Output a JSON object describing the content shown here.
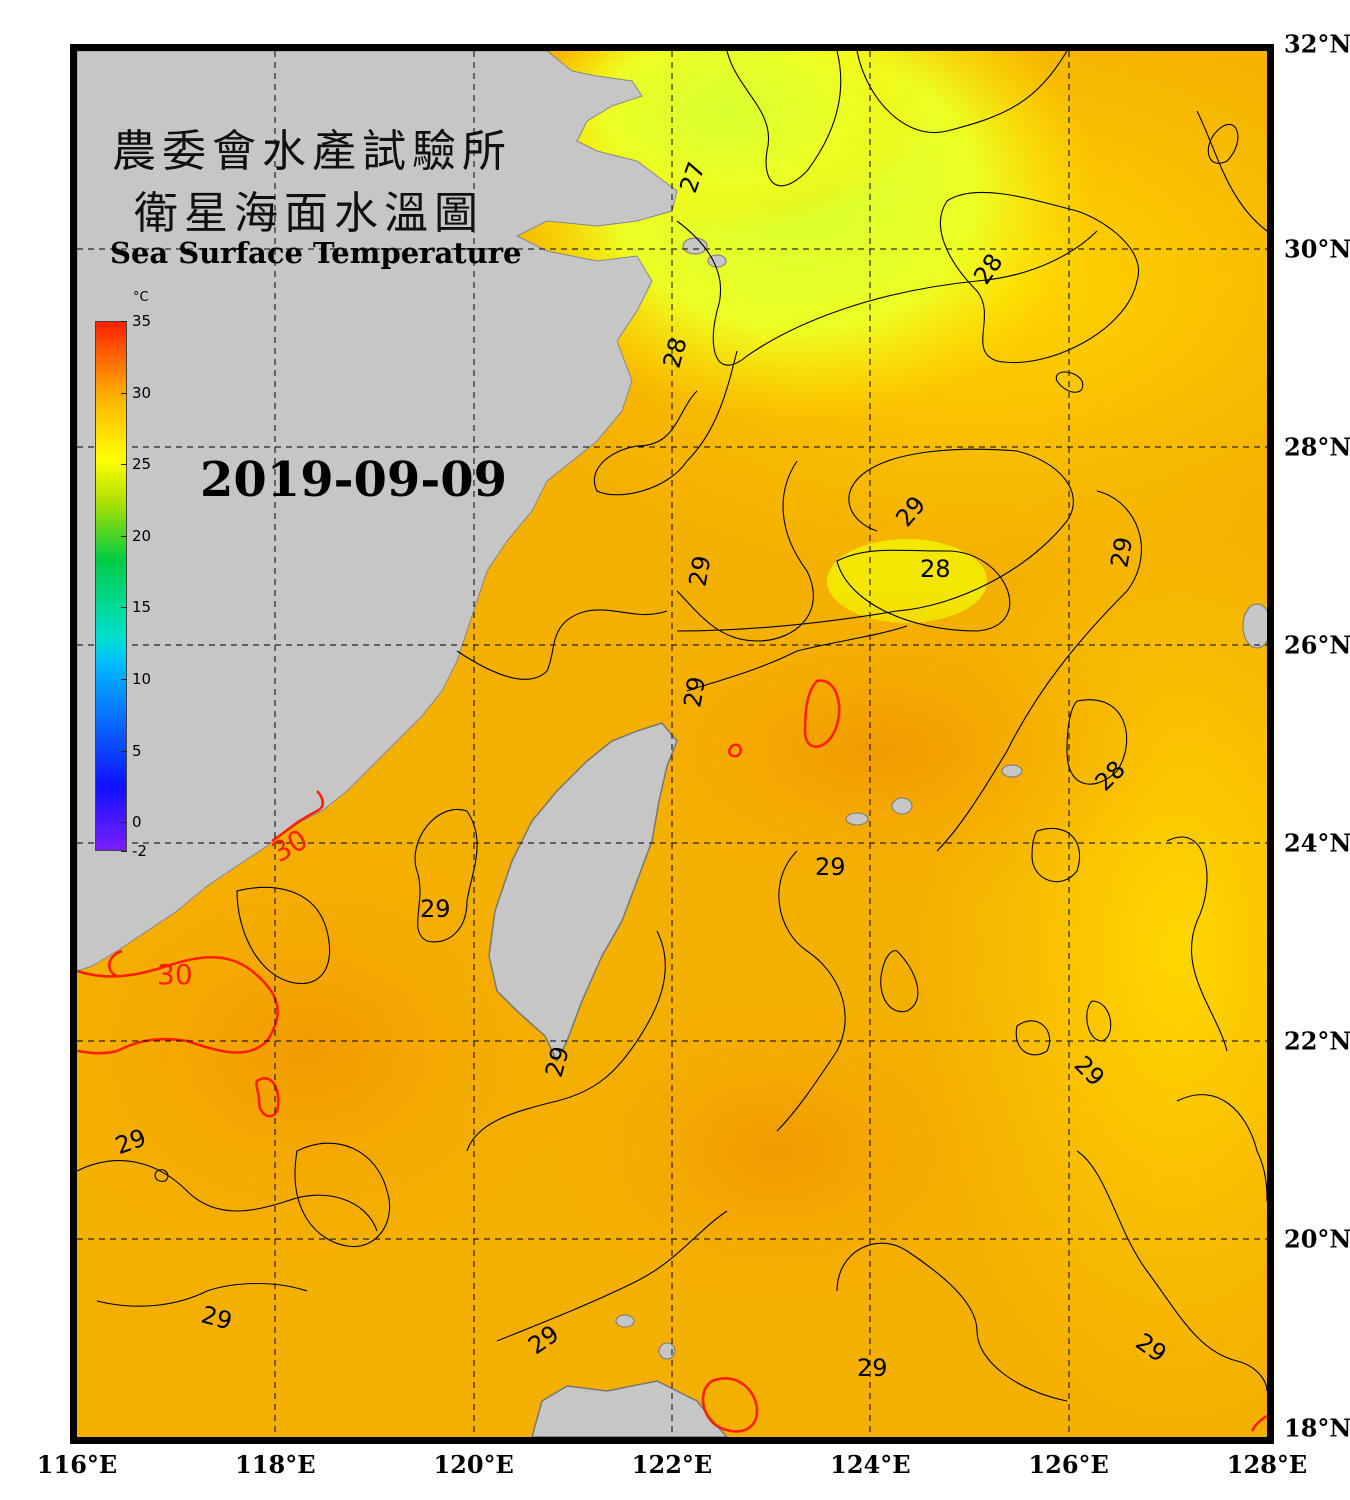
{
  "title": {
    "zh_line1": "農委會水產試驗所",
    "zh_line2": "衛星海面水溫圖",
    "en": "Sea Surface Temperature"
  },
  "date": "2019-09-09",
  "colorbar": {
    "unit": "°C",
    "min": -2,
    "max": 35,
    "tick_labels": [
      "35",
      "30",
      "25",
      "20",
      "15",
      "10",
      "5",
      "0",
      "-2"
    ],
    "tick_values": [
      35,
      30,
      25,
      20,
      15,
      10,
      5,
      0,
      -2
    ],
    "colors": [
      "#7a1fff",
      "#1010ff",
      "#00b8ff",
      "#00e0d0",
      "#00cc44",
      "#b0e000",
      "#ffff00",
      "#ffb000",
      "#ff2000"
    ]
  },
  "axes": {
    "lat_labels": [
      "32°N",
      "30°N",
      "28°N",
      "26°N",
      "24°N",
      "22°N",
      "20°N",
      "18°N"
    ],
    "lat_values": [
      32,
      30,
      28,
      26,
      24,
      22,
      20,
      18
    ],
    "lon_labels": [
      "116°E",
      "118°E",
      "120°E",
      "122°E",
      "124°E",
      "126°E",
      "128°E"
    ],
    "lon_values": [
      116,
      118,
      120,
      122,
      124,
      126,
      128
    ],
    "lon_range": [
      116,
      128
    ],
    "lat_range": [
      18,
      32
    ],
    "grid": "dashed"
  },
  "contours": {
    "labels_black": [
      "27",
      "28",
      "29",
      "28",
      "28",
      "29",
      "29",
      "29",
      "29",
      "29",
      "29",
      "29",
      "29",
      "29",
      "29",
      "28",
      "29",
      "29"
    ],
    "labels_red": [
      "30",
      "30"
    ]
  },
  "colors": {
    "land": "#c6c6c6",
    "sea_warm": "#f4b400",
    "sea_cool": "#e8ff20",
    "contour_black": "#000000",
    "contour_red": "#ff2000",
    "frame": "#000000"
  }
}
